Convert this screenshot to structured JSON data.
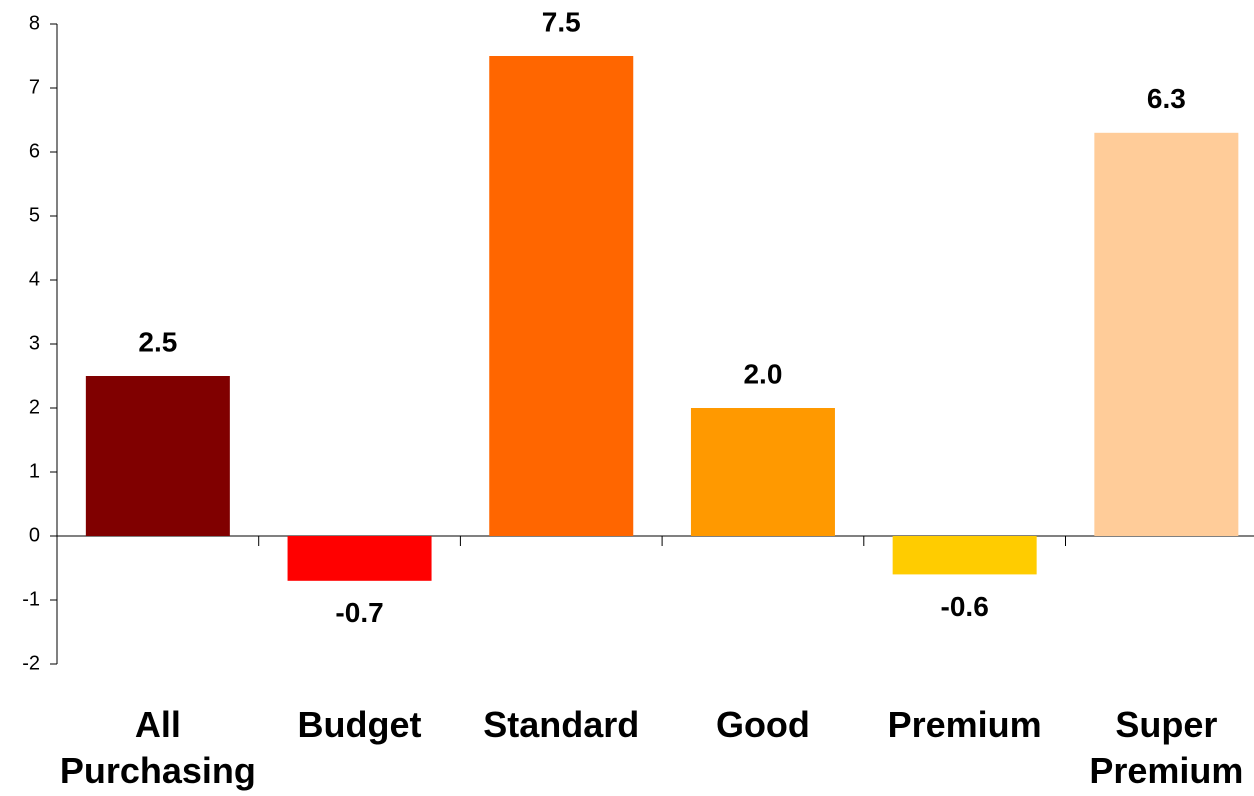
{
  "chart_data": {
    "type": "bar",
    "categories": [
      "All Purchasing",
      "Budget",
      "Standard",
      "Good",
      "Premium",
      "Super Premium"
    ],
    "values": [
      2.5,
      -0.7,
      7.5,
      2.0,
      -0.6,
      6.3
    ],
    "value_labels": [
      "2.5",
      "-0.7",
      "7.5",
      "2.0",
      "-0.6",
      "6.3"
    ],
    "colors": [
      "#800000",
      "#ff0000",
      "#ff6600",
      "#ff9900",
      "#ffcc00",
      "#ffcc99"
    ],
    "ylim": [
      -2,
      8
    ],
    "yticks": [
      -2,
      -1,
      0,
      1,
      2,
      3,
      4,
      5,
      6,
      7,
      8
    ],
    "grid": false
  }
}
